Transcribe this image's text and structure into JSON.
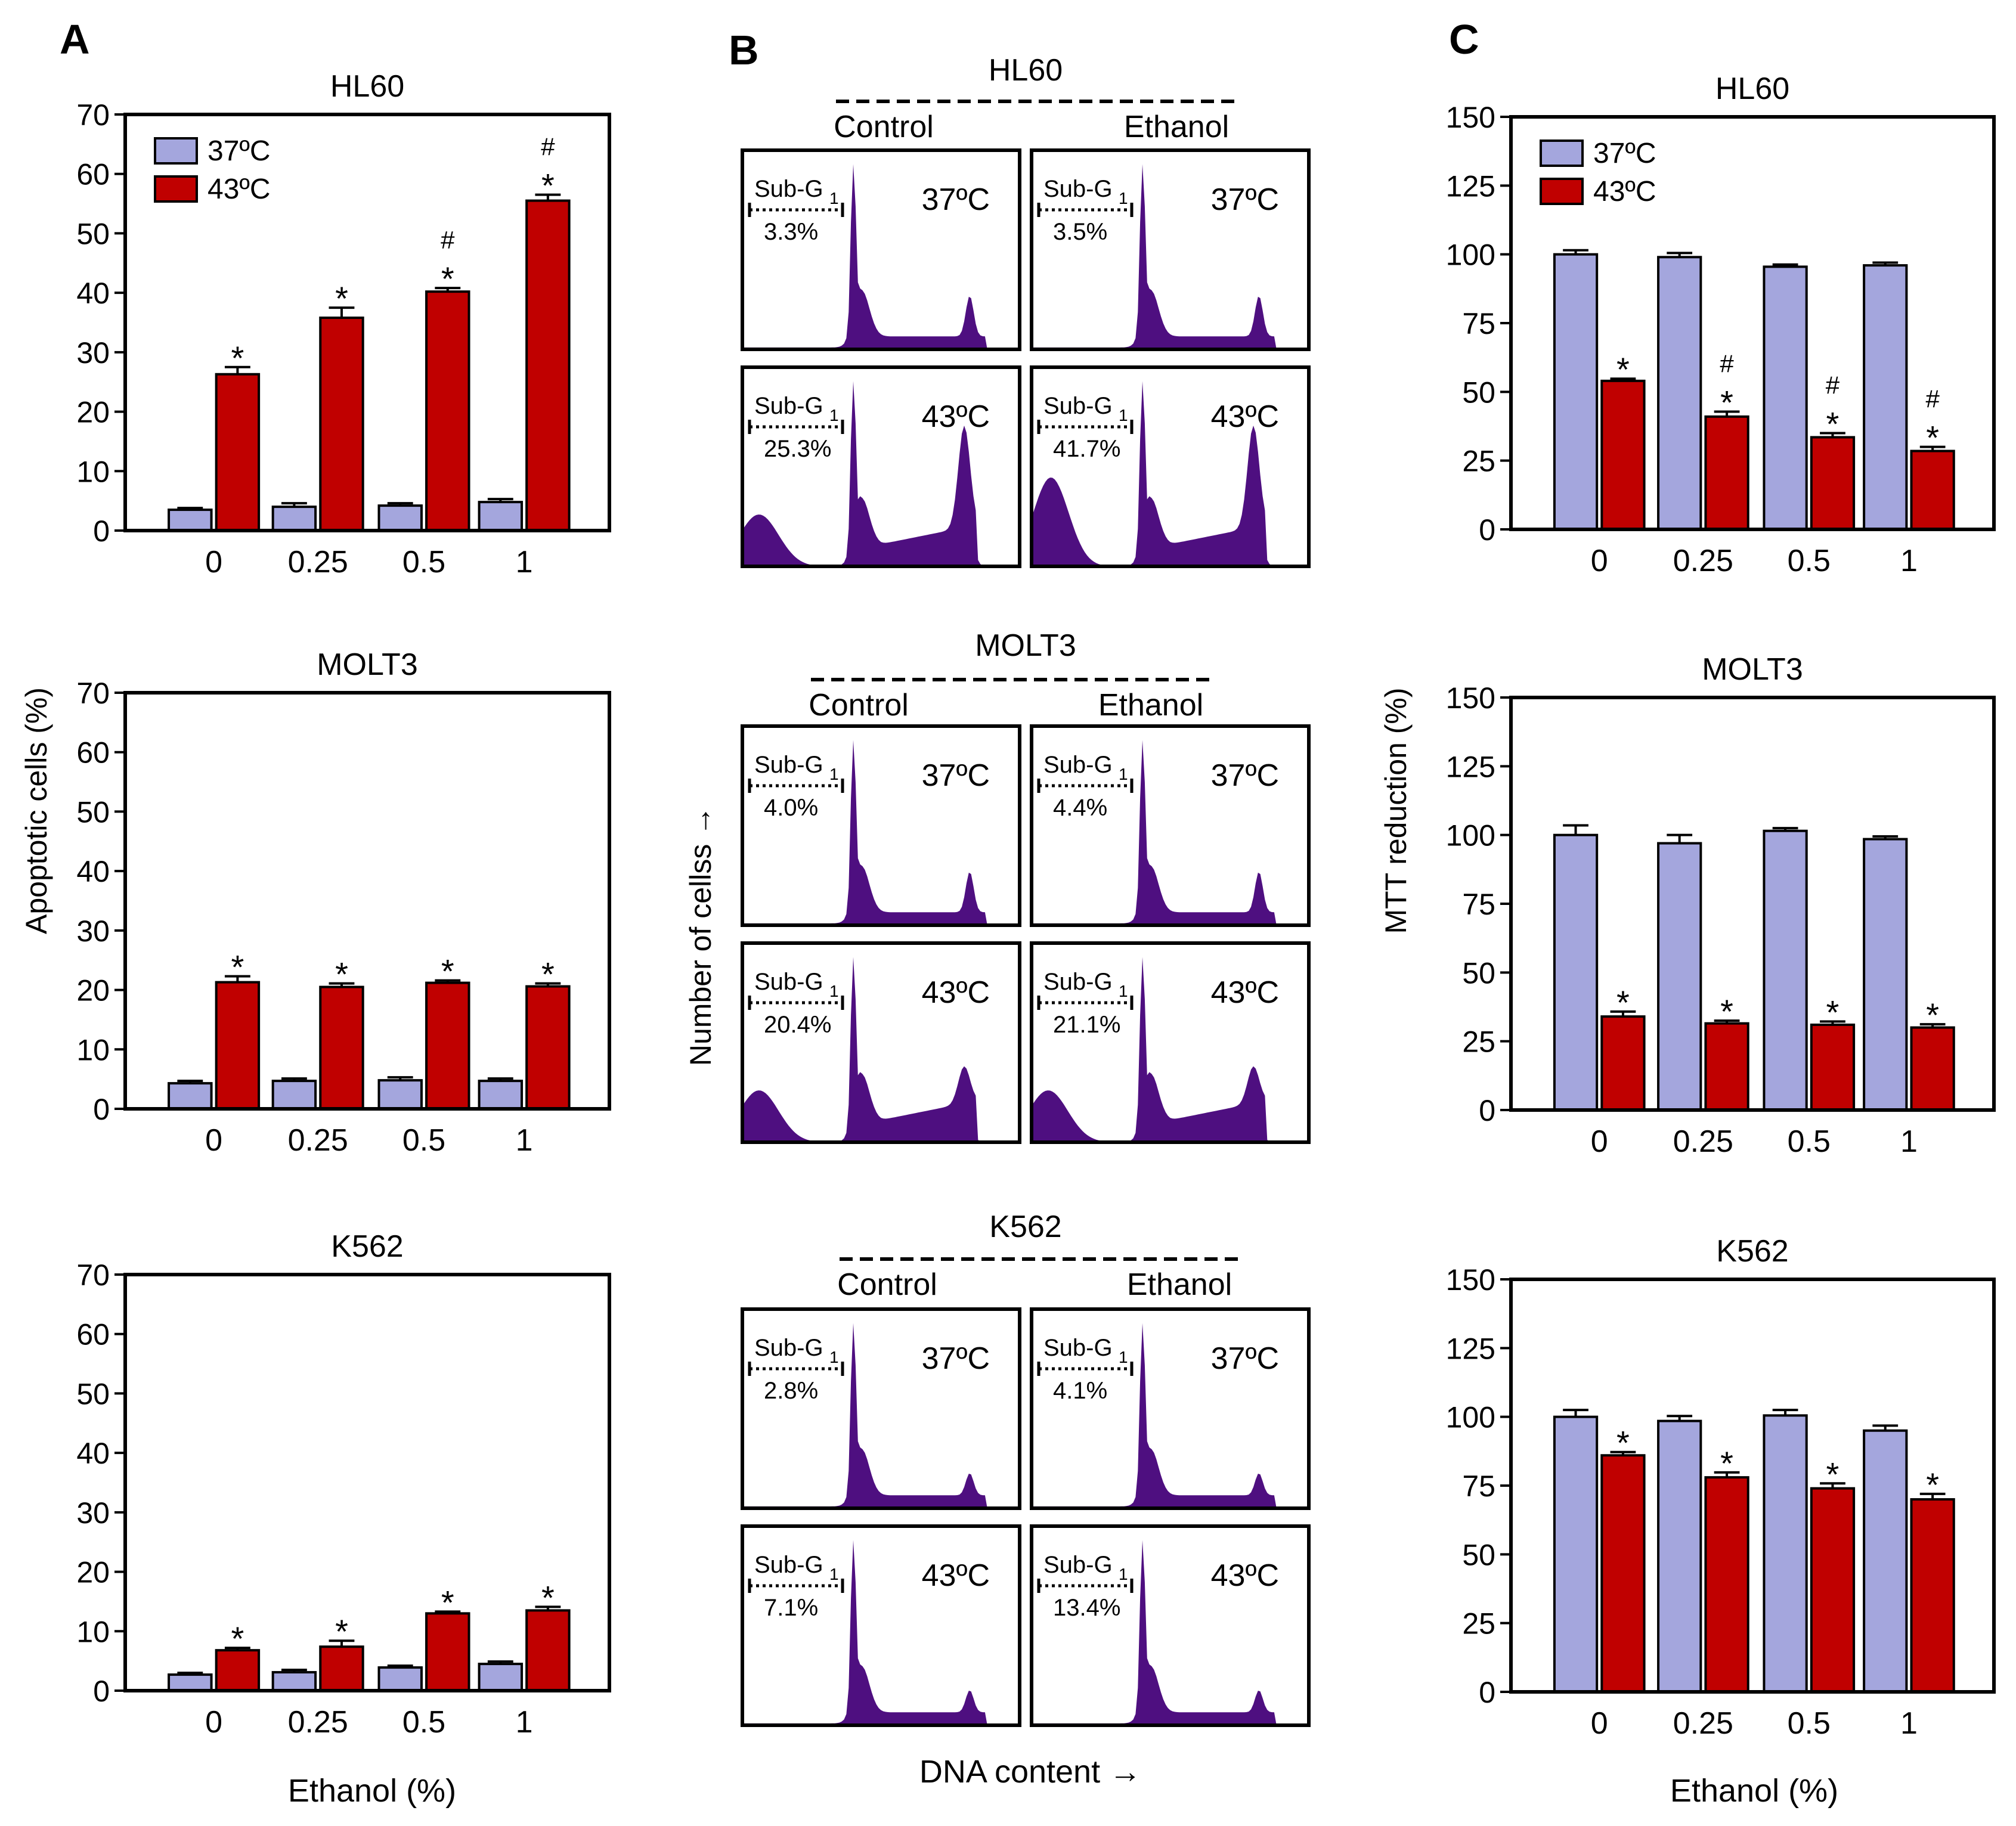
{
  "colors": {
    "c37": "#a4a6dd",
    "c43": "#c00000",
    "histo": "#4e0f80",
    "frame": "#000000"
  },
  "panel_labels": {
    "a": "A",
    "b": "B",
    "c": "C"
  },
  "axis_text": {
    "apoptotic_ylabel": "Apoptotic cells (%)",
    "mtt_ylabel": "MTT reduction  (%)",
    "ethanol_xlabel": "Ethanol (%)",
    "dna_xlabel": "DNA content →",
    "cells_ylabel": "Number of cellss →"
  },
  "flow": {
    "control": "Control",
    "ethanol": "Ethanol",
    "sub_g_base": "Sub-G",
    "sub_g_sub": "1",
    "blocks": [
      {
        "title": "HL60",
        "t37": "37ºC",
        "t43": "43ºC",
        "pct": [
          "3.3%",
          "3.5%",
          "25.3%",
          "41.7%"
        ]
      },
      {
        "title": "MOLT3",
        "t37": "37ºC",
        "t43": "43ºC",
        "pct": [
          "4.0%",
          "4.4%",
          "20.4%",
          "21.1%"
        ]
      },
      {
        "title": "K562",
        "t37": "37ºC",
        "t43": "43ºC",
        "pct": [
          "2.8%",
          "4.1%",
          "7.1%",
          "13.4%"
        ]
      }
    ]
  },
  "chart_data": [
    {
      "type": "bar",
      "panel": "A",
      "title": "HL60",
      "categories": [
        "0",
        "0.25",
        "0.5",
        "1"
      ],
      "ylim": [
        0,
        70
      ],
      "yticks": [
        0,
        10,
        20,
        30,
        40,
        50,
        60,
        70
      ],
      "ylabel": "Apoptotic cells (%)",
      "xlabel": "",
      "legend": [
        "37ºC",
        "43ºC"
      ],
      "series": [
        {
          "name": "37ºC",
          "values": [
            3.5,
            4.0,
            4.2,
            4.8
          ],
          "errors": [
            0.3,
            0.6,
            0.4,
            0.5
          ],
          "marks": [
            "",
            "",
            "",
            ""
          ]
        },
        {
          "name": "43ºC",
          "values": [
            26.3,
            35.8,
            40.2,
            55.5
          ],
          "errors": [
            1.2,
            1.7,
            0.6,
            1.0
          ],
          "marks": [
            "*",
            "*",
            "#\n*",
            "#\n*"
          ]
        }
      ]
    },
    {
      "type": "bar",
      "panel": "A",
      "title": "MOLT3",
      "categories": [
        "0",
        "0.25",
        "0.5",
        "1"
      ],
      "ylim": [
        0,
        70
      ],
      "yticks": [
        0,
        10,
        20,
        30,
        40,
        50,
        60,
        70
      ],
      "ylabel": "Apoptotic cells (%)",
      "xlabel": "",
      "series": [
        {
          "name": "37ºC",
          "values": [
            4.3,
            4.7,
            4.8,
            4.7
          ],
          "errors": [
            0.4,
            0.4,
            0.5,
            0.4
          ],
          "marks": [
            "",
            "",
            "",
            ""
          ]
        },
        {
          "name": "43ºC",
          "values": [
            21.3,
            20.5,
            21.2,
            20.6
          ],
          "errors": [
            1.0,
            0.6,
            0.4,
            0.5
          ],
          "marks": [
            "*",
            "*",
            "*",
            "*"
          ]
        }
      ]
    },
    {
      "type": "bar",
      "panel": "A",
      "title": "K562",
      "categories": [
        "0",
        "0.25",
        "0.5",
        "1"
      ],
      "ylim": [
        0,
        70
      ],
      "yticks": [
        0,
        10,
        20,
        30,
        40,
        50,
        60,
        70
      ],
      "ylabel": "",
      "xlabel": "Ethanol (%)",
      "series": [
        {
          "name": "37ºC",
          "values": [
            2.7,
            3.1,
            3.9,
            4.5
          ],
          "errors": [
            0.3,
            0.4,
            0.3,
            0.4
          ],
          "marks": [
            "",
            "",
            "",
            ""
          ]
        },
        {
          "name": "43ºC",
          "values": [
            6.8,
            7.4,
            13.0,
            13.5
          ],
          "errors": [
            0.4,
            1.0,
            0.3,
            0.6
          ],
          "marks": [
            "*",
            "*",
            "*",
            "*"
          ]
        }
      ]
    },
    {
      "type": "bar",
      "panel": "C",
      "title": "HL60",
      "categories": [
        "0",
        "0.25",
        "0.5",
        "1"
      ],
      "ylim": [
        0,
        150
      ],
      "yticks": [
        0,
        25,
        50,
        75,
        100,
        125,
        150
      ],
      "ylabel": "MTT reduction  (%)",
      "xlabel": "",
      "legend": [
        "37ºC",
        "43ºC"
      ],
      "series": [
        {
          "name": "37ºC",
          "values": [
            100,
            99,
            95.5,
            96
          ],
          "errors": [
            1.5,
            1.5,
            0.8,
            1.0
          ],
          "marks": [
            "",
            "",
            "",
            ""
          ]
        },
        {
          "name": "43ºC",
          "values": [
            54,
            41,
            33.5,
            28.5
          ],
          "errors": [
            0.8,
            1.8,
            1.5,
            1.5
          ],
          "marks": [
            "*",
            "#\n*",
            "#\n*",
            "#\n*"
          ]
        }
      ]
    },
    {
      "type": "bar",
      "panel": "C",
      "title": "MOLT3",
      "categories": [
        "0",
        "0.25",
        "0.5",
        "1"
      ],
      "ylim": [
        0,
        150
      ],
      "yticks": [
        0,
        25,
        50,
        75,
        100,
        125,
        150
      ],
      "ylabel": "MTT reduction  (%)",
      "xlabel": "",
      "series": [
        {
          "name": "37ºC",
          "values": [
            100,
            97,
            101.5,
            98.5
          ],
          "errors": [
            3.5,
            3.0,
            1.0,
            1.0
          ],
          "marks": [
            "",
            "",
            "",
            ""
          ]
        },
        {
          "name": "43ºC",
          "values": [
            34,
            31.5,
            31,
            30
          ],
          "errors": [
            1.8,
            1.0,
            1.2,
            1.2
          ],
          "marks": [
            "*",
            "*",
            "*",
            "*"
          ]
        }
      ]
    },
    {
      "type": "bar",
      "panel": "C",
      "title": "K562",
      "categories": [
        "0",
        "0.25",
        "0.5",
        "1"
      ],
      "ylim": [
        0,
        150
      ],
      "yticks": [
        0,
        25,
        50,
        75,
        100,
        125,
        150
      ],
      "ylabel": "",
      "xlabel": "Ethanol (%)",
      "series": [
        {
          "name": "37ºC",
          "values": [
            100,
            98.5,
            100.5,
            95
          ],
          "errors": [
            2.5,
            1.8,
            2.0,
            1.8
          ],
          "marks": [
            "",
            "",
            "",
            ""
          ]
        },
        {
          "name": "43ºC",
          "values": [
            86,
            78,
            74,
            70
          ],
          "errors": [
            1.2,
            1.8,
            1.8,
            2.0
          ],
          "marks": [
            "*",
            "*",
            "*",
            "*"
          ]
        }
      ]
    }
  ]
}
